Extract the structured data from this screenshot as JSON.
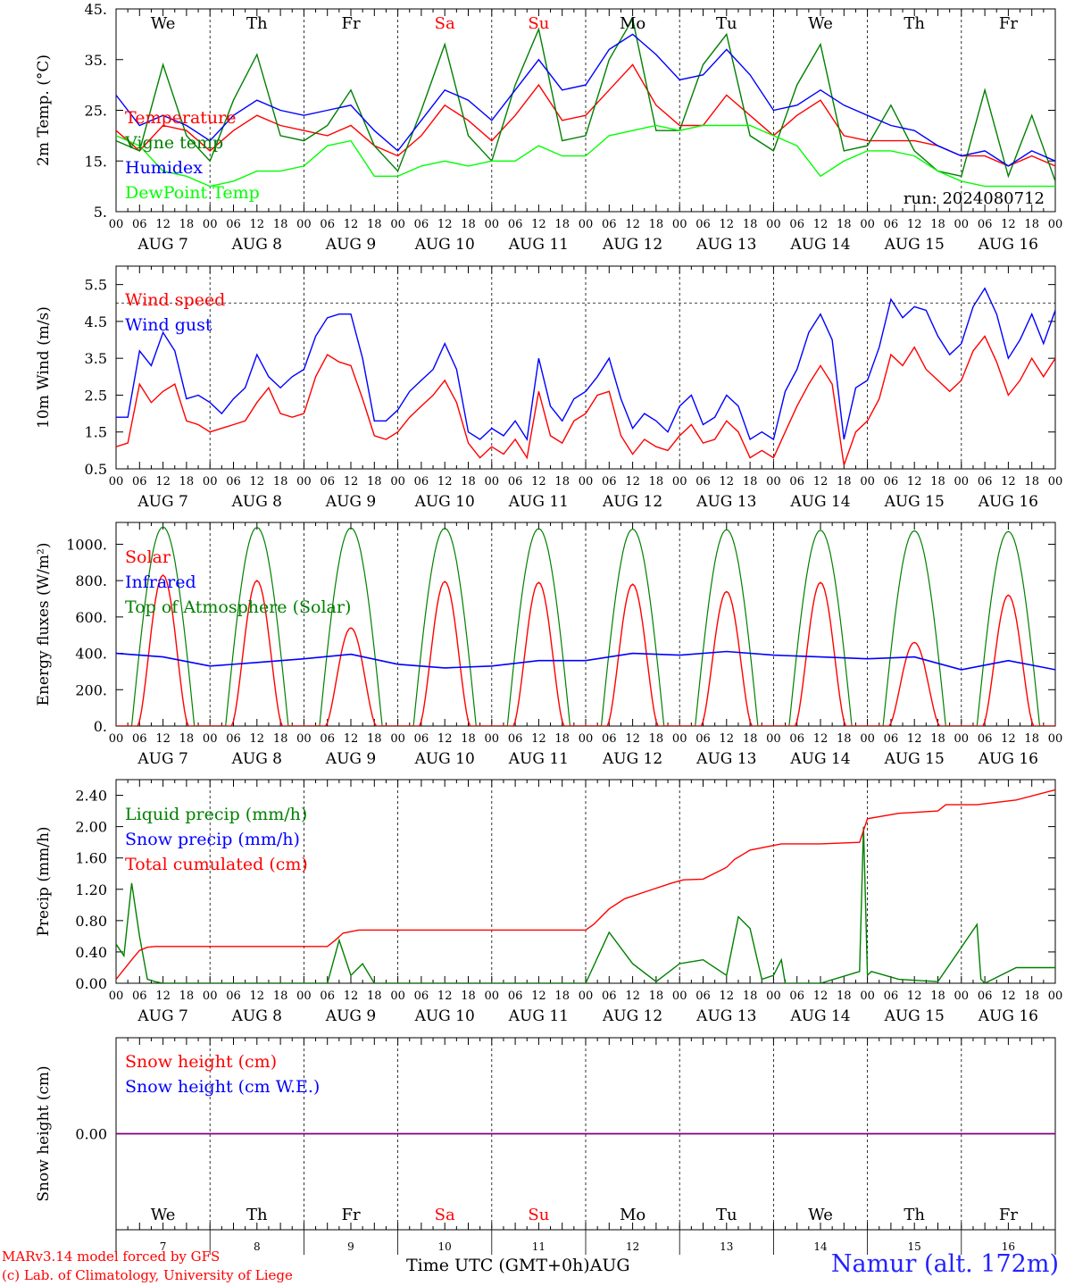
{
  "station": "Namur (alt. 172m)",
  "credits": [
    "MARv3.14 model forced by GFS",
    "(c) Lab. of Climatology, University of Liege"
  ],
  "xlabel": "Time UTC (GMT+0h)",
  "month": "AUG",
  "run": "run: 2024080712",
  "days": [
    {
      "abbr": "We",
      "date": "AUG  7",
      "num": "7",
      "weekend": false
    },
    {
      "abbr": "Th",
      "date": "AUG  8",
      "num": "8",
      "weekend": false
    },
    {
      "abbr": "Fr",
      "date": "AUG  9",
      "num": "9",
      "weekend": false
    },
    {
      "abbr": "Sa",
      "date": "AUG 10",
      "num": "10",
      "weekend": true
    },
    {
      "abbr": "Su",
      "date": "AUG 11",
      "num": "11",
      "weekend": true
    },
    {
      "abbr": "Mo",
      "date": "AUG 12",
      "num": "12",
      "weekend": false
    },
    {
      "abbr": "Tu",
      "date": "AUG 13",
      "num": "13",
      "weekend": false
    },
    {
      "abbr": "We",
      "date": "AUG 14",
      "num": "14",
      "weekend": false
    },
    {
      "abbr": "Th",
      "date": "AUG 15",
      "num": "15",
      "weekend": false
    },
    {
      "abbr": "Fr",
      "date": "AUG 16",
      "num": "16",
      "weekend": false
    }
  ],
  "hour_labels": [
    "00",
    "06",
    "12",
    "18"
  ],
  "colors": {
    "red": "#ff0000",
    "green": "#008000",
    "blue": "#0000ff",
    "lime": "#00ff00",
    "purple": "#800080"
  },
  "chart_data": [
    {
      "type": "line",
      "ylabel": "2m Temp. (°C)",
      "ylim": [
        5,
        45
      ],
      "yticks": [
        "5.",
        "15.",
        "25.",
        "35.",
        "45."
      ],
      "x_unit": "hours since AUG 7 00 UTC",
      "legend": [
        "Temperature",
        "Vigne temp",
        "Humidex",
        "DewPoint Temp"
      ],
      "series": [
        {
          "name": "Temperature",
          "color": "#ff0000",
          "x": [
            0,
            6,
            12,
            18,
            24,
            30,
            36,
            42,
            48,
            54,
            60,
            66,
            72,
            78,
            84,
            90,
            96,
            102,
            108,
            114,
            120,
            126,
            132,
            138,
            144,
            150,
            156,
            162,
            168,
            174,
            180,
            186,
            192,
            198,
            204,
            210,
            216,
            222,
            228,
            234,
            240
          ],
          "y": [
            21,
            17,
            22,
            21,
            17,
            21,
            24,
            22,
            21,
            20,
            22,
            18,
            16,
            20,
            26,
            23,
            19,
            24,
            30,
            23,
            24,
            29,
            34,
            26,
            22,
            22,
            28,
            24,
            20,
            24,
            27,
            20,
            19,
            19,
            19,
            18,
            16,
            16,
            14,
            16,
            14
          ]
        },
        {
          "name": "Vigne temp",
          "color": "#008000",
          "x": [
            0,
            6,
            12,
            18,
            24,
            30,
            36,
            42,
            48,
            54,
            60,
            66,
            72,
            78,
            84,
            90,
            96,
            102,
            108,
            114,
            120,
            126,
            132,
            138,
            144,
            150,
            156,
            162,
            168,
            174,
            180,
            186,
            192,
            198,
            204,
            210,
            216,
            222,
            228,
            234,
            240
          ],
          "y": [
            19,
            17,
            34,
            20,
            15,
            27,
            36,
            20,
            19,
            22,
            29,
            18,
            13,
            25,
            38,
            20,
            15,
            30,
            41,
            19,
            20,
            35,
            43,
            21,
            21,
            34,
            40,
            20,
            17,
            30,
            38,
            17,
            18,
            26,
            17,
            13,
            12,
            29,
            12,
            24,
            11
          ]
        },
        {
          "name": "Humidex",
          "color": "#0000ff",
          "x": [
            0,
            6,
            12,
            18,
            24,
            30,
            36,
            42,
            48,
            54,
            60,
            66,
            72,
            78,
            84,
            90,
            96,
            102,
            108,
            114,
            120,
            126,
            132,
            138,
            144,
            150,
            156,
            162,
            168,
            174,
            180,
            186,
            192,
            198,
            204,
            210,
            216,
            222,
            228,
            234,
            240
          ],
          "y": [
            28,
            22,
            24,
            22,
            19,
            24,
            27,
            25,
            24,
            25,
            26,
            21,
            17,
            23,
            29,
            27,
            23,
            29,
            35,
            29,
            30,
            37,
            40,
            36,
            31,
            32,
            37,
            32,
            25,
            26,
            29,
            26,
            24,
            22,
            21,
            18,
            16,
            17,
            14,
            17,
            15
          ]
        },
        {
          "name": "DewPoint Temp",
          "color": "#00ff00",
          "x": [
            0,
            6,
            12,
            18,
            24,
            30,
            36,
            42,
            48,
            54,
            60,
            66,
            72,
            78,
            84,
            90,
            96,
            102,
            108,
            114,
            120,
            126,
            132,
            138,
            144,
            150,
            156,
            162,
            168,
            174,
            180,
            186,
            192,
            198,
            204,
            210,
            216,
            222,
            228,
            234,
            240
          ],
          "y": [
            20,
            18,
            13,
            12,
            10,
            11,
            13,
            13,
            14,
            18,
            19,
            12,
            12,
            14,
            15,
            14,
            15,
            15,
            18,
            16,
            16,
            20,
            21,
            22,
            21,
            22,
            22,
            22,
            20,
            18,
            12,
            15,
            17,
            17,
            16,
            13,
            11,
            10,
            10,
            10,
            10
          ]
        }
      ]
    },
    {
      "type": "line",
      "ylabel": "10m Wind (m/s)",
      "ylim": [
        0.5,
        6.0
      ],
      "yticks": [
        "0.5",
        "1.5",
        "2.5",
        "3.5",
        "4.5",
        "5.5"
      ],
      "reference_line": 5.0,
      "legend": [
        "Wind speed",
        "Wind gust"
      ],
      "series": [
        {
          "name": "Wind speed",
          "color": "#ff0000",
          "x": [
            0,
            3,
            6,
            9,
            12,
            15,
            18,
            21,
            24,
            27,
            30,
            33,
            36,
            39,
            42,
            45,
            48,
            51,
            54,
            57,
            60,
            63,
            66,
            69,
            72,
            75,
            78,
            81,
            84,
            87,
            90,
            93,
            96,
            99,
            102,
            105,
            108,
            111,
            114,
            117,
            120,
            123,
            126,
            129,
            132,
            135,
            138,
            141,
            144,
            147,
            150,
            153,
            156,
            159,
            162,
            165,
            168,
            171,
            174,
            177,
            180,
            183,
            186,
            189,
            192,
            195,
            198,
            201,
            204,
            207,
            210,
            213,
            216,
            219,
            222,
            225,
            228,
            231,
            234,
            237,
            240
          ],
          "y": [
            1.1,
            1.2,
            2.8,
            2.3,
            2.6,
            2.8,
            1.8,
            1.7,
            1.5,
            1.6,
            1.7,
            1.8,
            2.3,
            2.7,
            2.0,
            1.9,
            2.0,
            3.0,
            3.6,
            3.4,
            3.3,
            2.4,
            1.4,
            1.3,
            1.5,
            1.9,
            2.2,
            2.5,
            2.9,
            2.3,
            1.2,
            0.8,
            1.1,
            0.9,
            1.3,
            0.8,
            2.6,
            1.4,
            1.2,
            1.8,
            2.0,
            2.5,
            2.6,
            1.4,
            0.9,
            1.3,
            1.1,
            1.0,
            1.4,
            1.7,
            1.2,
            1.3,
            1.8,
            1.5,
            0.8,
            1.0,
            0.8,
            1.5,
            2.2,
            2.8,
            3.3,
            2.8,
            0.6,
            1.5,
            1.8,
            2.4,
            3.6,
            3.3,
            3.8,
            3.2,
            2.9,
            2.6,
            2.9,
            3.7,
            4.1,
            3.4,
            2.5,
            2.9,
            3.5,
            3.0,
            3.5
          ]
        },
        {
          "name": "Wind gust",
          "color": "#0000ff",
          "x": [
            0,
            3,
            6,
            9,
            12,
            15,
            18,
            21,
            24,
            27,
            30,
            33,
            36,
            39,
            42,
            45,
            48,
            51,
            54,
            57,
            60,
            63,
            66,
            69,
            72,
            75,
            78,
            81,
            84,
            87,
            90,
            93,
            96,
            99,
            102,
            105,
            108,
            111,
            114,
            117,
            120,
            123,
            126,
            129,
            132,
            135,
            138,
            141,
            144,
            147,
            150,
            153,
            156,
            159,
            162,
            165,
            168,
            171,
            174,
            177,
            180,
            183,
            186,
            189,
            192,
            195,
            198,
            201,
            204,
            207,
            210,
            213,
            216,
            219,
            222,
            225,
            228,
            231,
            234,
            237,
            240
          ],
          "y": [
            1.9,
            1.9,
            3.7,
            3.3,
            4.2,
            3.7,
            2.4,
            2.5,
            2.3,
            2.0,
            2.4,
            2.7,
            3.6,
            3.0,
            2.7,
            3.0,
            3.2,
            4.1,
            4.6,
            4.7,
            4.7,
            3.5,
            1.8,
            1.8,
            2.1,
            2.6,
            2.9,
            3.2,
            3.9,
            3.2,
            1.5,
            1.3,
            1.6,
            1.4,
            1.8,
            1.3,
            3.5,
            2.2,
            1.8,
            2.4,
            2.6,
            3.0,
            3.5,
            2.4,
            1.6,
            2.0,
            1.8,
            1.5,
            2.2,
            2.5,
            1.7,
            1.9,
            2.5,
            2.2,
            1.3,
            1.5,
            1.3,
            2.6,
            3.2,
            4.2,
            4.7,
            4.0,
            1.3,
            2.7,
            2.9,
            3.8,
            5.1,
            4.6,
            4.9,
            4.8,
            4.1,
            3.6,
            3.9,
            4.9,
            5.4,
            4.7,
            3.5,
            4.0,
            4.7,
            3.9,
            4.8
          ]
        }
      ]
    },
    {
      "type": "line",
      "ylabel": "Energy fluxes (W/m²)",
      "ylim": [
        0,
        1120
      ],
      "yticks": [
        "0.",
        "200.",
        "400.",
        "600.",
        "800.",
        "1000."
      ],
      "legend": [
        "Solar",
        "Infrared",
        "Top of Atmosphere (Solar)"
      ],
      "toa_daily_peaks": [
        1095,
        1093,
        1090,
        1088,
        1086,
        1083,
        1080,
        1077,
        1074,
        1070
      ],
      "solar_daily_peaks": [
        830,
        800,
        540,
        795,
        790,
        780,
        740,
        790,
        460,
        720
      ],
      "series": [
        {
          "name": "Infrared",
          "color": "#0000ff",
          "x": [
            0,
            12,
            24,
            36,
            48,
            60,
            72,
            84,
            96,
            108,
            120,
            132,
            144,
            156,
            168,
            180,
            192,
            204,
            216,
            228,
            240
          ],
          "y": [
            400,
            380,
            330,
            350,
            370,
            395,
            340,
            320,
            330,
            360,
            360,
            400,
            390,
            410,
            390,
            380,
            370,
            380,
            310,
            360,
            310
          ]
        }
      ]
    },
    {
      "type": "line",
      "ylabel": "Precip (mm/h)",
      "ylim": [
        0,
        2.6
      ],
      "yticks": [
        "0.00",
        "0.40",
        "0.80",
        "1.20",
        "1.60",
        "2.00",
        "2.40"
      ],
      "legend": [
        "Liquid precip (mm/h)",
        "Snow precip (mm/h)",
        "Total cumulated (cm)"
      ],
      "series": [
        {
          "name": "Liquid precip (mm/h)",
          "color": "#008000",
          "x": [
            0,
            2,
            4,
            6,
            8,
            10,
            12,
            54,
            57,
            60,
            63,
            66,
            120,
            126,
            132,
            138,
            144,
            150,
            156,
            159,
            162,
            165,
            168,
            170,
            171,
            174,
            180,
            190,
            191,
            192,
            193,
            200,
            210,
            220,
            221,
            222,
            230,
            240
          ],
          "y": [
            0.5,
            0.35,
            1.28,
            0.6,
            0.05,
            0.02,
            0,
            0,
            0.55,
            0.1,
            0.25,
            0,
            0,
            0.65,
            0.25,
            0.02,
            0.25,
            0.3,
            0.1,
            0.85,
            0.7,
            0.05,
            0.1,
            0.3,
            0,
            0,
            0,
            0.15,
            2.0,
            0.1,
            0.15,
            0.05,
            0.02,
            0.75,
            0.05,
            0,
            0.2,
            0.2
          ]
        },
        {
          "name": "Total cumulated (cm)",
          "color": "#ff0000",
          "x": [
            0,
            4,
            6,
            8,
            10,
            54,
            56,
            58,
            62,
            64,
            80,
            100,
            120,
            122,
            126,
            130,
            136,
            142,
            145,
            150,
            156,
            158,
            162,
            170,
            180,
            190,
            192,
            200,
            210,
            212,
            220,
            230,
            240
          ],
          "y": [
            0.05,
            0.3,
            0.42,
            0.46,
            0.47,
            0.47,
            0.55,
            0.64,
            0.68,
            0.68,
            0.68,
            0.68,
            0.68,
            0.75,
            0.95,
            1.08,
            1.18,
            1.28,
            1.32,
            1.33,
            1.48,
            1.58,
            1.7,
            1.78,
            1.78,
            1.8,
            2.1,
            2.17,
            2.2,
            2.28,
            2.28,
            2.34,
            2.47
          ]
        }
      ]
    },
    {
      "type": "line",
      "ylabel": "Snow height (cm)",
      "ylim": [
        -1,
        1
      ],
      "yticks": [
        "0.00"
      ],
      "legend": [
        "Snow height (cm)",
        "Snow height (cm W.E.)"
      ],
      "series": [
        {
          "name": "Snow height (cm)",
          "color": "#ff0000",
          "x": [
            0,
            240
          ],
          "y": [
            0,
            0
          ]
        },
        {
          "name": "Snow height (cm W.E.)",
          "color": "#0000ff",
          "x": [
            0,
            240
          ],
          "y": [
            0,
            0
          ]
        }
      ]
    }
  ]
}
